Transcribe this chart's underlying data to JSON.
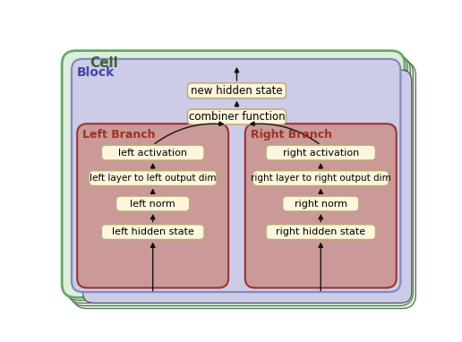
{
  "cell_label": "Cell",
  "block_label": "Block",
  "left_branch_label": "Left Branch",
  "right_branch_label": "Right Branch",
  "cell_bg": "#ddeedd",
  "cell_border": "#66aa66",
  "block_bg": "#cccce8",
  "block_border": "#8888bb",
  "left_branch_bg": "#cc9999",
  "left_branch_border": "#993333",
  "right_branch_bg": "#cc9999",
  "right_branch_border": "#993333",
  "node_bg": "#fdf5dc",
  "node_border": "#bbaa77",
  "left_nodes": [
    "left activation",
    "left layer to left output dim",
    "left norm",
    "left hidden state"
  ],
  "right_nodes": [
    "right activation",
    "right layer to right output dim",
    "right norm",
    "right hidden state"
  ],
  "center_nodes": [
    "new hidden state",
    "combiner function"
  ],
  "label_color_cell": "#336633",
  "label_color_block": "#4444aa",
  "label_color_branch": "#993322",
  "arrow_color": "#111111",
  "stack_color": "#aaaacc",
  "stack_count": 4
}
